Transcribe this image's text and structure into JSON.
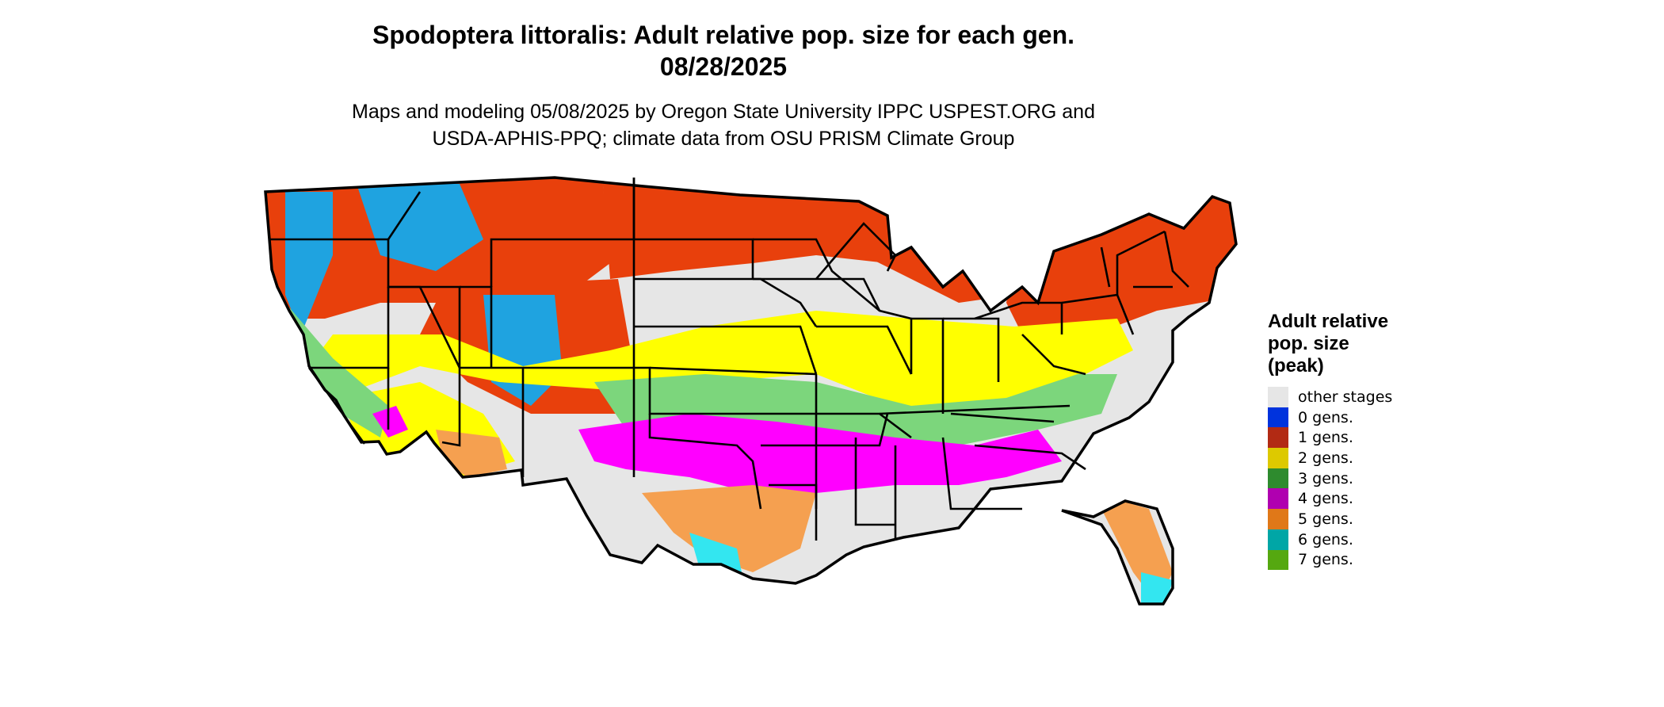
{
  "title": {
    "line1": "Spodoptera littoralis: Adult relative pop. size for each gen.",
    "line2": "08/28/2025"
  },
  "subtitle": {
    "line1": "Maps and modeling 05/08/2025 by Oregon State University IPPC USPEST.ORG and",
    "line2": "USDA-APHIS-PPQ; climate data from OSU PRISM Climate Group"
  },
  "map": {
    "region": "Contiguous United States",
    "colors": {
      "other_stages": "#e6e6e6",
      "gen1": "#e8400c",
      "gen1_alt": "#1fa3e0",
      "gen2": "#ffff00",
      "gen3": "#7cd67c",
      "gen4": "#ff00ff",
      "gen5": "#f5a050",
      "gen6": "#33e6f0",
      "border": "#000000"
    }
  },
  "legend": {
    "title_line1": "Adult relative",
    "title_line2": "pop. size",
    "title_line3": "(peak)",
    "items": [
      {
        "label": "other stages",
        "color": "#e6e6e6"
      },
      {
        "label": "0 gens.",
        "color": "#0033dd"
      },
      {
        "label": "1 gens.",
        "color": "#b22a14"
      },
      {
        "label": "2 gens.",
        "color": "#ddc900"
      },
      {
        "label": "3 gens.",
        "color": "#2e8b2e"
      },
      {
        "label": "4 gens.",
        "color": "#b000b0"
      },
      {
        "label": "5 gens.",
        "color": "#e07818"
      },
      {
        "label": "6 gens.",
        "color": "#00a6a6"
      },
      {
        "label": "7 gens.",
        "color": "#55a810"
      }
    ]
  }
}
